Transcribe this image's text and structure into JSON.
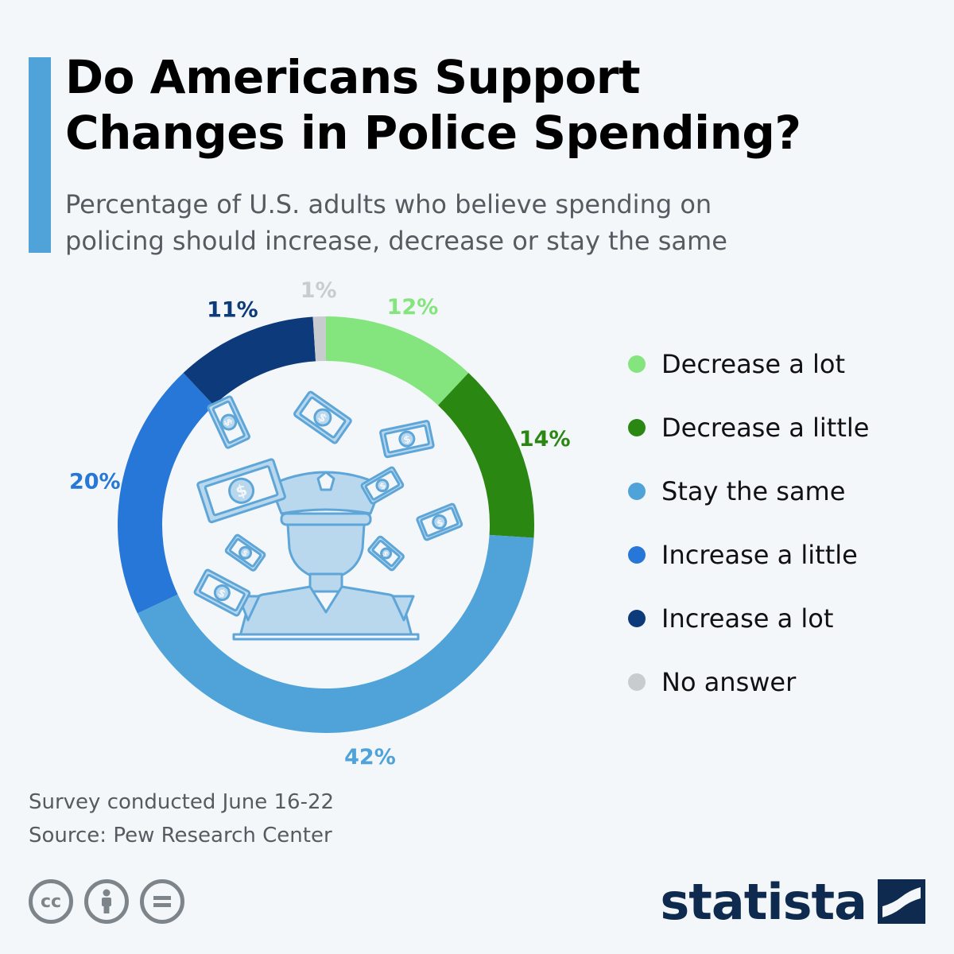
{
  "header": {
    "title_line1": "Do Americans Support",
    "title_line2": "Changes in Police Spending?",
    "subtitle_line1": "Percentage of U.S. adults who believe spending on",
    "subtitle_line2": "policing should increase, decrease or stay the same"
  },
  "chart_data": {
    "type": "pie",
    "style": "donut",
    "title": "Do Americans Support Changes in Police Spending?",
    "subtitle": "Percentage of U.S. adults who believe spending on policing should increase, decrease or stay the same",
    "legend_placement": "right",
    "slices": [
      {
        "label": "Decrease a lot",
        "value": 12,
        "display": "12%",
        "color": "#84e57e"
      },
      {
        "label": "Decrease a little",
        "value": 14,
        "display": "14%",
        "color": "#2a8712"
      },
      {
        "label": "Stay the same",
        "value": 42,
        "display": "42%",
        "color": "#4fa3d8"
      },
      {
        "label": "Increase a little",
        "value": 20,
        "display": "20%",
        "color": "#2677d8"
      },
      {
        "label": "Increase a lot",
        "value": 11,
        "display": "11%",
        "color": "#0d3a7a"
      },
      {
        "label": "No answer",
        "value": 1,
        "display": "1%",
        "color": "#c9ccce"
      }
    ],
    "center_illustration": "police-officer-with-money-icon"
  },
  "footer": {
    "note": "Survey conducted June 16-22",
    "source": "Source: Pew Research Center",
    "license_icons": [
      "cc-icon",
      "attribution-icon",
      "no-derivatives-icon"
    ],
    "brand": "statista"
  }
}
